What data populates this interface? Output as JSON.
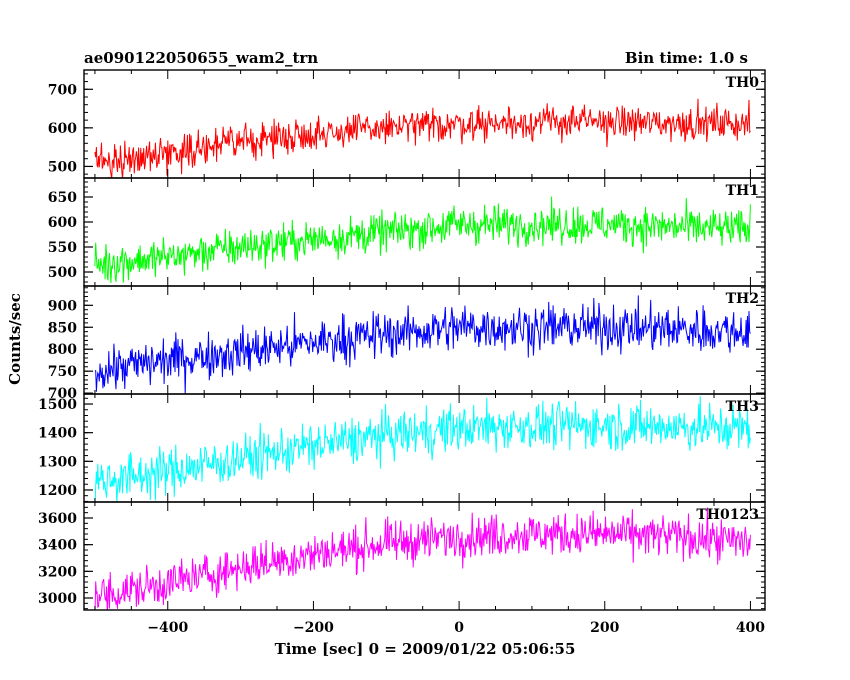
{
  "header": {
    "title": "ae090122050655_wam2_trn",
    "bin_time": "Bin time: 1.0 s"
  },
  "chart_data": {
    "type": "line",
    "title": "ae090122050655_wam2_trn",
    "subtitle": "Bin time: 1.0 s",
    "xlabel": "Time [sec] 0 = 2009/01/22 05:06:55",
    "ylabel": "Counts/sec",
    "xlim": [
      -515,
      420
    ],
    "x_ticks": [
      -400,
      -200,
      0,
      200,
      400
    ],
    "x_range_data": [
      -500,
      400
    ],
    "bin_time_sec": 1.0,
    "grid": false,
    "panels": [
      {
        "name": "TH0",
        "color": "#ff0000",
        "ylim": [
          470,
          750
        ],
        "y_ticks": [
          500,
          600,
          700
        ],
        "trend": [
          [
            -500,
            510
          ],
          [
            -400,
            535
          ],
          [
            -300,
            565
          ],
          [
            -200,
            585
          ],
          [
            -100,
            600
          ],
          [
            0,
            610
          ],
          [
            100,
            615
          ],
          [
            200,
            615
          ],
          [
            300,
            612
          ],
          [
            400,
            612
          ]
        ],
        "noise_range": 90
      },
      {
        "name": "TH1",
        "color": "#00ff00",
        "ylim": [
          472,
          688
        ],
        "y_ticks": [
          500,
          550,
          600,
          650
        ],
        "trend": [
          [
            -500,
            515
          ],
          [
            -400,
            530
          ],
          [
            -300,
            550
          ],
          [
            -200,
            565
          ],
          [
            -100,
            580
          ],
          [
            0,
            595
          ],
          [
            100,
            595
          ],
          [
            200,
            595
          ],
          [
            300,
            590
          ],
          [
            400,
            585
          ]
        ],
        "noise_range": 80
      },
      {
        "name": "TH2",
        "color": "#0000ff",
        "ylim": [
          698,
          944
        ],
        "y_ticks": [
          700,
          750,
          800,
          850,
          900
        ],
        "trend": [
          [
            -500,
            750
          ],
          [
            -400,
            775
          ],
          [
            -300,
            795
          ],
          [
            -200,
            815
          ],
          [
            -100,
            835
          ],
          [
            0,
            850
          ],
          [
            100,
            850
          ],
          [
            200,
            850
          ],
          [
            300,
            845
          ],
          [
            400,
            840
          ]
        ],
        "noise_range": 110
      },
      {
        "name": "TH3",
        "color": "#00ffff",
        "ylim": [
          1158,
          1535
        ],
        "y_ticks": [
          1200,
          1300,
          1400,
          1500
        ],
        "trend": [
          [
            -500,
            1230
          ],
          [
            -400,
            1265
          ],
          [
            -300,
            1310
          ],
          [
            -200,
            1355
          ],
          [
            -100,
            1390
          ],
          [
            0,
            1415
          ],
          [
            100,
            1425
          ],
          [
            200,
            1425
          ],
          [
            300,
            1420
          ],
          [
            400,
            1415
          ]
        ],
        "noise_range": 170
      },
      {
        "name": "TH0123",
        "color": "#ff00ff",
        "ylim": [
          2910,
          3720
        ],
        "y_ticks": [
          3000,
          3200,
          3400,
          3600
        ],
        "trend": [
          [
            -500,
            3010
          ],
          [
            -400,
            3110
          ],
          [
            -300,
            3230
          ],
          [
            -200,
            3330
          ],
          [
            -100,
            3410
          ],
          [
            0,
            3460
          ],
          [
            100,
            3480
          ],
          [
            200,
            3480
          ],
          [
            300,
            3460
          ],
          [
            400,
            3420
          ]
        ],
        "noise_range": 330
      }
    ]
  }
}
